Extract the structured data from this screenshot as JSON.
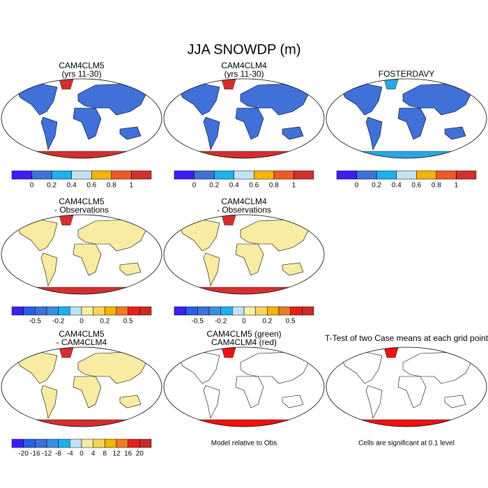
{
  "title": "JJA SNOWDP (m)",
  "panels": [
    {
      "title": [
        "CAM4CLM5",
        "(yrs 11-30)"
      ],
      "land_color": "#3f71d9",
      "polar_color": "#d42f2f",
      "colorbar": {
        "colors": [
          "#3b1ff5",
          "#3f71d9",
          "#1cb1ea",
          "#bfe3f2",
          "#f4b400",
          "#f05a28",
          "#d42f2f"
        ],
        "labels": [
          0,
          0.2,
          0.4,
          0.6,
          0.8,
          1
        ]
      }
    },
    {
      "title": [
        "CAM4CLM4",
        "(yrs 11-30)"
      ],
      "land_color": "#3f71d9",
      "polar_color": "#d42f2f",
      "colorbar": {
        "colors": [
          "#3b1ff5",
          "#3f71d9",
          "#1cb1ea",
          "#bfe3f2",
          "#f4b400",
          "#f05a28",
          "#d42f2f"
        ],
        "labels": [
          0,
          0.2,
          0.4,
          0.6,
          0.8,
          1
        ]
      }
    },
    {
      "title": [
        "FOSTERDAVY"
      ],
      "land_color": "#3f71d9",
      "polar_color": "#2aa6e6",
      "colorbar": {
        "colors": [
          "#3b1ff5",
          "#3f71d9",
          "#1cb1ea",
          "#bfe3f2",
          "#f4b400",
          "#f05a28",
          "#d42f2f"
        ],
        "labels": [
          0,
          0.2,
          0.4,
          0.6,
          0.8,
          1
        ]
      }
    },
    {
      "title": [
        "CAM4CLM5",
        "- Observations"
      ],
      "land_color": "#f8eca2",
      "polar_color": "#d42f2f",
      "colorbar": {
        "colors": [
          "#3b1ff5",
          "#2a5de8",
          "#3f71d9",
          "#3a8ee2",
          "#1cb1ea",
          "#bfe3f2",
          "#f8eca2",
          "#f6d35a",
          "#f4b400",
          "#f07a20",
          "#e8201c",
          "#c82a2a"
        ],
        "labels": [
          -0.5,
          -0.2,
          0,
          0.2,
          0.5
        ]
      }
    },
    {
      "title": [
        "CAM4CLM4",
        "- Observations"
      ],
      "land_color": "#f8eca2",
      "polar_color": "#d42f2f",
      "colorbar": {
        "colors": [
          "#3b1ff5",
          "#2a5de8",
          "#3f71d9",
          "#3a8ee2",
          "#1cb1ea",
          "#bfe3f2",
          "#f8eca2",
          "#f6d35a",
          "#f4b400",
          "#f07a20",
          "#e8201c",
          "#c82a2a"
        ],
        "labels": [
          -0.5,
          -0.2,
          0,
          0.2,
          0.5
        ]
      }
    },
    {
      "title": [
        "CAM4CLM5",
        "- CAM4CLM4"
      ],
      "land_color": "#f8eca2",
      "polar_color": "#d42f2f",
      "colorbar": {
        "colors": [
          "#3b1ff5",
          "#2a5de8",
          "#3f71d9",
          "#3a8ee2",
          "#1cb1ea",
          "#bfe3f2",
          "#f8eca2",
          "#f6d35a",
          "#f4b400",
          "#f07a20",
          "#e8201c",
          "#c82a2a"
        ],
        "labels": [
          -20,
          -16,
          -12,
          -8,
          -4,
          0,
          4,
          8,
          12,
          16,
          20
        ]
      }
    },
    {
      "title": [
        "CAM4CLM5 (green)",
        "CAM4CLM4 (red)"
      ],
      "land_color": "#ffffff",
      "polar_color": "#ee1111",
      "note": "Model relative to Obs"
    },
    {
      "title": [
        "T-Test of two Case means at each grid point"
      ],
      "land_color": "#ffffff",
      "polar_color": "#ee1111",
      "note": "Cells are significant at 0.1 level"
    }
  ]
}
